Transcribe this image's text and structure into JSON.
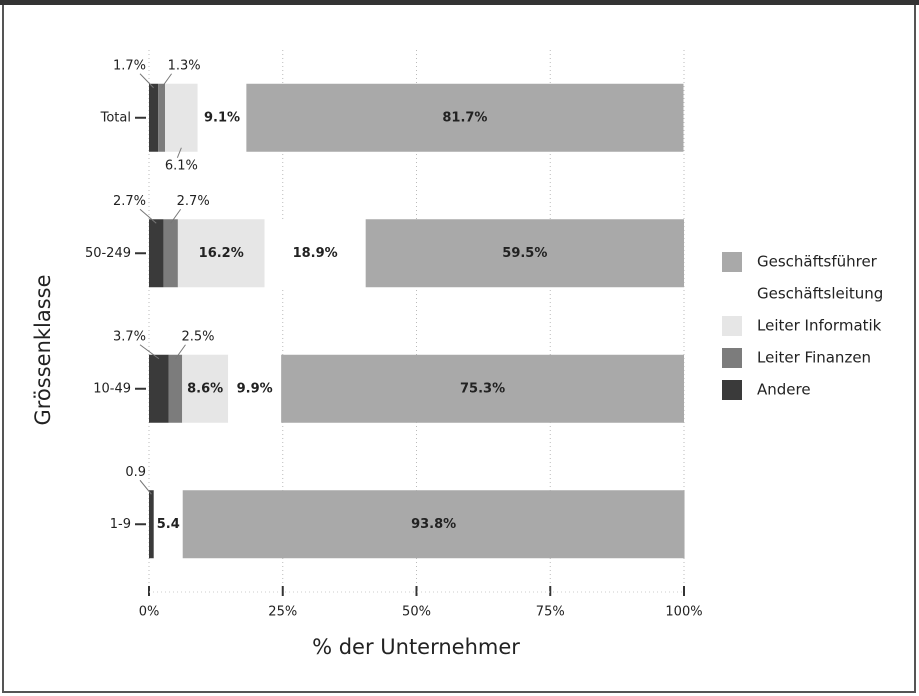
{
  "chart_data": {
    "type": "stacked_bar_horizontal",
    "xlabel": "% der Unternehmer",
    "ylabel": "Grössenklasse",
    "categories": [
      "Total",
      "50-249",
      "10-49",
      "1-9"
    ],
    "series": [
      {
        "name": "Andere",
        "color": "#3a3a3a",
        "values": [
          1.7,
          2.7,
          3.7,
          0.9
        ],
        "value_labels": [
          "1.7%",
          "2.7%",
          "3.7%",
          "0.9"
        ]
      },
      {
        "name": "Leiter Finanzen",
        "color": "#7c7c7c",
        "values": [
          1.3,
          2.7,
          2.5,
          null
        ],
        "value_labels": [
          "1.3%",
          "2.7%",
          "2.5%",
          null
        ]
      },
      {
        "name": "Leiter Informatik",
        "color": "#e6e6e6",
        "values": [
          6.1,
          16.2,
          8.6,
          null
        ],
        "value_labels": [
          "6.1%",
          "16.2%",
          "8.6%",
          null
        ]
      },
      {
        "name": "Geschäftsleitung",
        "color": "#ffffff",
        "values": [
          9.1,
          18.9,
          9.9,
          5.4
        ],
        "value_labels": [
          "9.1%",
          "18.9%",
          "9.9%",
          "5.4"
        ]
      },
      {
        "name": "Geschäftsführer",
        "color": "#a9a9a9",
        "values": [
          81.7,
          59.5,
          75.3,
          93.8
        ],
        "value_labels": [
          "81.7%",
          "59.5%",
          "75.3%",
          "93.8%"
        ]
      }
    ],
    "xlim": [
      0,
      100
    ],
    "xticks": [
      {
        "value": 0,
        "label": "0%"
      },
      {
        "value": 25,
        "label": "25%"
      },
      {
        "value": 50,
        "label": "50%"
      },
      {
        "value": 75,
        "label": "75%"
      },
      {
        "value": 100,
        "label": "100%"
      }
    ],
    "grid": true,
    "legend": "right"
  }
}
